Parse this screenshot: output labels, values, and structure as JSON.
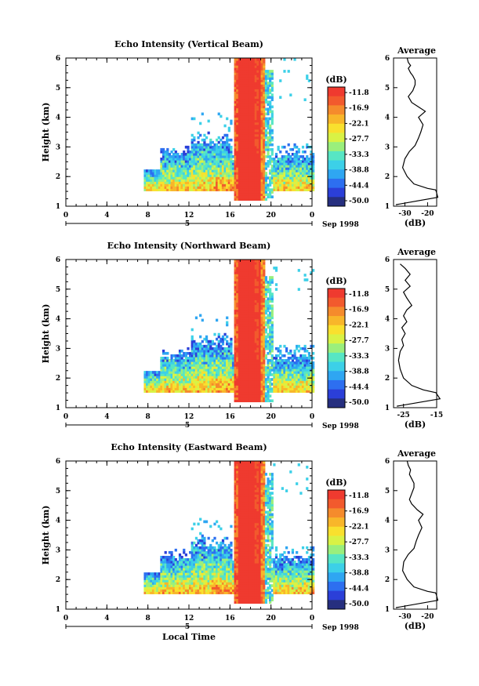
{
  "chart_data": [
    {
      "type": "heatmap",
      "title": "Echo Intensity (Vertical Beam)",
      "ylabel": "Height (km)",
      "xlabel": "",
      "x_ticks": [
        "0",
        "4",
        "8",
        "12",
        "16",
        "20",
        "0"
      ],
      "y_ticks": [
        "1",
        "2",
        "3",
        "4",
        "5",
        "6"
      ],
      "xlim": [
        0,
        24
      ],
      "ylim": [
        1,
        6
      ],
      "date_label": "5",
      "date_suffix": "Sep 1998",
      "colorbar": {
        "unit": "(dB)",
        "levels": [
          "-11.8",
          "-16.9",
          "-22.1",
          "-27.7",
          "-33.3",
          "-38.8",
          "-44.4",
          "-50.0"
        ]
      },
      "profile": {
        "title": "Average",
        "xlabel": "(dB)",
        "x_ticks": [
          "-30",
          "-20"
        ],
        "xlim": [
          -35,
          -16
        ],
        "x": [
          -16.5,
          -20,
          -26,
          -29,
          -31,
          -30,
          -28,
          -25.5,
          -24,
          -23,
          -22,
          -24,
          -21,
          -24,
          -27,
          -28.5,
          -26.5,
          -25.5,
          -25.5,
          -26.5,
          -27.5,
          -28.5,
          -27.5,
          -28.5,
          -29
        ],
        "y": [
          1.55,
          1.6,
          1.75,
          2.0,
          2.3,
          2.6,
          2.85,
          3.05,
          3.3,
          3.5,
          3.75,
          4.0,
          4.2,
          4.35,
          4.5,
          4.7,
          4.9,
          5.1,
          5.25,
          5.4,
          5.5,
          5.65,
          5.75,
          5.85,
          6.0
        ]
      }
    },
    {
      "type": "heatmap",
      "title": "Echo Intensity (Northward Beam)",
      "ylabel": "Height (km)",
      "xlabel": "",
      "x_ticks": [
        "0",
        "4",
        "8",
        "12",
        "16",
        "20",
        "0"
      ],
      "y_ticks": [
        "1",
        "2",
        "3",
        "4",
        "5",
        "6"
      ],
      "xlim": [
        0,
        24
      ],
      "ylim": [
        1,
        6
      ],
      "date_label": "5",
      "date_suffix": "Sep 1998",
      "colorbar": {
        "unit": "(dB)",
        "levels": [
          "-11.8",
          "-16.9",
          "-22.1",
          "-27.7",
          "-33.3",
          "-38.8",
          "-44.4",
          "-50.0"
        ]
      },
      "profile": {
        "title": "Average",
        "xlabel": "(dB)",
        "x_ticks": [
          "-25",
          "-15"
        ],
        "xlim": [
          -28,
          -15
        ],
        "x": [
          -15,
          -19,
          -22.5,
          -25,
          -26,
          -26.5,
          -26,
          -25,
          -25.5,
          -24.5,
          -25.5,
          -24,
          -25,
          -24,
          -22.5,
          -24,
          -25,
          -23,
          -24.5,
          -23,
          -24.5,
          -26
        ],
        "y": [
          1.5,
          1.6,
          1.75,
          2.0,
          2.3,
          2.6,
          2.9,
          3.1,
          3.3,
          3.5,
          3.7,
          3.9,
          4.1,
          4.3,
          4.45,
          4.7,
          4.9,
          5.1,
          5.3,
          5.5,
          5.7,
          5.85
        ]
      }
    },
    {
      "type": "heatmap",
      "title": "Echo Intensity (Eastward Beam)",
      "ylabel": "Height (km)",
      "xlabel": "Local Time",
      "x_ticks": [
        "0",
        "4",
        "8",
        "12",
        "16",
        "20",
        "0"
      ],
      "y_ticks": [
        "1",
        "2",
        "3",
        "4",
        "5",
        "6"
      ],
      "xlim": [
        0,
        24
      ],
      "ylim": [
        1,
        6
      ],
      "date_label": "5",
      "date_suffix": "Sep 1998",
      "colorbar": {
        "unit": "(dB)",
        "levels": [
          "-11.8",
          "-16.9",
          "-22.1",
          "-27.7",
          "-33.3",
          "-38.8",
          "-44.4",
          "-50.0"
        ]
      },
      "profile": {
        "title": "Average",
        "xlabel": "(dB)",
        "x_ticks": [
          "-30",
          "-20"
        ],
        "xlim": [
          -35,
          -16
        ],
        "x": [
          -16.5,
          -20,
          -26,
          -29,
          -31,
          -30.5,
          -28.5,
          -26,
          -25,
          -24,
          -22.5,
          -24,
          -22,
          -24.5,
          -27,
          -28,
          -27,
          -26,
          -26,
          -27,
          -28,
          -27.5,
          -28.5,
          -29
        ],
        "y": [
          1.55,
          1.6,
          1.75,
          2.0,
          2.3,
          2.6,
          2.85,
          3.05,
          3.3,
          3.5,
          3.75,
          4.0,
          4.2,
          4.35,
          4.55,
          4.7,
          4.9,
          5.1,
          5.25,
          5.4,
          5.55,
          5.7,
          5.85,
          6.0
        ]
      }
    }
  ],
  "colors": {
    "scale": [
      "#262f7f",
      "#2b3fd8",
      "#2d6ff0",
      "#2fa6f2",
      "#3cd0e8",
      "#57e6c4",
      "#9aef7c",
      "#d9f245",
      "#f9e02e",
      "#f8b62a",
      "#f58b2c",
      "#f25a2d",
      "#ef3a2f"
    ]
  }
}
